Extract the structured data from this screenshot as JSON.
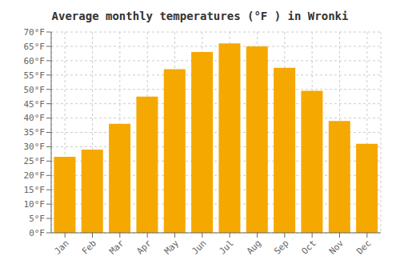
{
  "chart_data": {
    "type": "bar",
    "title": "Average monthly temperatures (°F ) in Wronki",
    "categories": [
      "Jan",
      "Feb",
      "Mar",
      "Apr",
      "May",
      "Jun",
      "Jul",
      "Aug",
      "Sep",
      "Oct",
      "Nov",
      "Dec"
    ],
    "values": [
      26.5,
      29.0,
      38.0,
      47.5,
      57.0,
      63.0,
      66.0,
      65.0,
      57.5,
      49.5,
      39.0,
      31.0
    ],
    "color": "#F5A800",
    "ylim": [
      0,
      70
    ],
    "yticks": [
      {
        "value": 0,
        "label": "0°F"
      },
      {
        "value": 5,
        "label": "5°F"
      },
      {
        "value": 10,
        "label": "10°F"
      },
      {
        "value": 15,
        "label": "15°F"
      },
      {
        "value": 20,
        "label": "20°F"
      },
      {
        "value": 25,
        "label": "25°F"
      },
      {
        "value": 30,
        "label": "30°F"
      },
      {
        "value": 35,
        "label": "35°F"
      },
      {
        "value": 40,
        "label": "40°F"
      },
      {
        "value": 45,
        "label": "45°F"
      },
      {
        "value": 50,
        "label": "50°F"
      },
      {
        "value": 55,
        "label": "55°F"
      },
      {
        "value": 60,
        "label": "60°F"
      },
      {
        "value": 65,
        "label": "65°F"
      },
      {
        "value": 70,
        "label": "70°F"
      }
    ],
    "grid": true
  }
}
